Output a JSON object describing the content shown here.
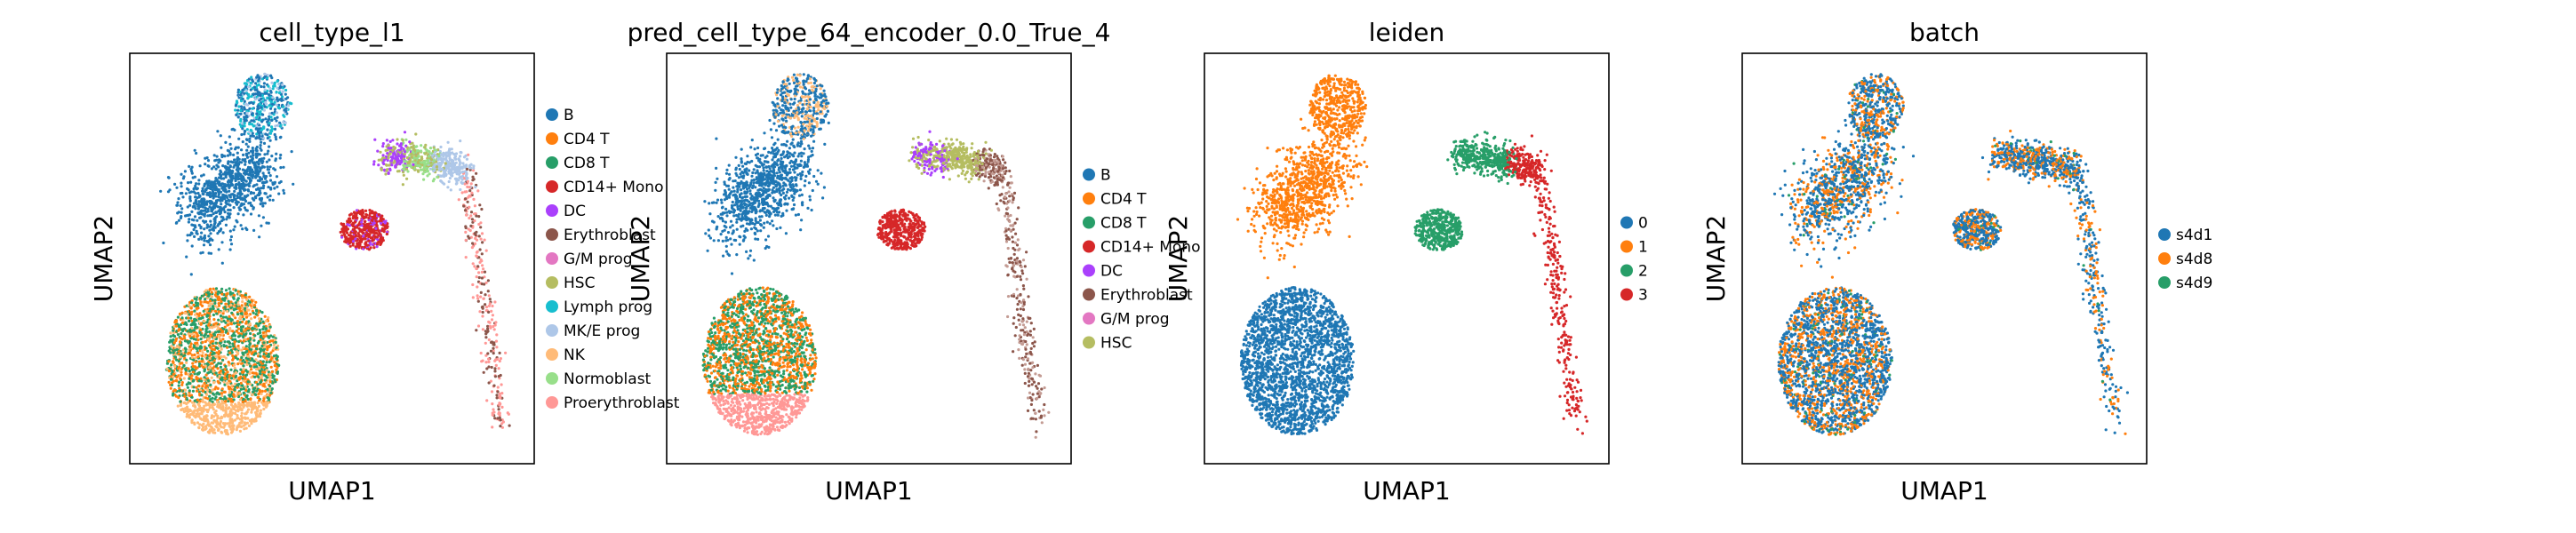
{
  "figure": {
    "panels": [
      {
        "title": "cell_type_l1",
        "xlabel": "UMAP1",
        "ylabel": "UMAP2",
        "legend": [
          {
            "label": "B",
            "color": "#1f77b4"
          },
          {
            "label": "CD4 T",
            "color": "#ff7f0e"
          },
          {
            "label": "CD8 T",
            "color": "#279e68"
          },
          {
            "label": "CD14+ Mono",
            "color": "#d62728"
          },
          {
            "label": "DC",
            "color": "#aa40fc"
          },
          {
            "label": "Erythroblast",
            "color": "#8c564b"
          },
          {
            "label": "G/M prog",
            "color": "#e377c2"
          },
          {
            "label": "HSC",
            "color": "#b5bd61"
          },
          {
            "label": "Lymph prog",
            "color": "#17becf"
          },
          {
            "label": "MK/E prog",
            "color": "#aec7e8"
          },
          {
            "label": "NK",
            "color": "#ffbb78"
          },
          {
            "label": "Normoblast",
            "color": "#98df8a"
          },
          {
            "label": "Proerythroblast",
            "color": "#ff9896"
          }
        ]
      },
      {
        "title": "pred_cell_type_64_encoder_0.0_True_4",
        "xlabel": "UMAP1",
        "ylabel": "UMAP2",
        "legend": [
          {
            "label": "B",
            "color": "#1f77b4"
          },
          {
            "label": "CD4 T",
            "color": "#ff7f0e"
          },
          {
            "label": "CD8 T",
            "color": "#279e68"
          },
          {
            "label": "CD14+ Mono",
            "color": "#d62728"
          },
          {
            "label": "DC",
            "color": "#aa40fc"
          },
          {
            "label": "Erythroblast",
            "color": "#8c564b"
          },
          {
            "label": "G/M prog",
            "color": "#e377c2"
          },
          {
            "label": "HSC",
            "color": "#b5bd61"
          }
        ]
      },
      {
        "title": "leiden",
        "xlabel": "UMAP1",
        "ylabel": "UMAP2",
        "legend": [
          {
            "label": "0",
            "color": "#1f77b4"
          },
          {
            "label": "1",
            "color": "#ff7f0e"
          },
          {
            "label": "2",
            "color": "#279e68"
          },
          {
            "label": "3",
            "color": "#d62728"
          }
        ]
      },
      {
        "title": "batch",
        "xlabel": "UMAP1",
        "ylabel": "UMAP2",
        "legend": [
          {
            "label": "s4d1",
            "color": "#1f77b4"
          },
          {
            "label": "s4d8",
            "color": "#ff7f0e"
          },
          {
            "label": "s4d9",
            "color": "#279e68"
          }
        ]
      }
    ]
  },
  "chart_data": [
    {
      "type": "scatter",
      "title": "cell_type_l1",
      "xlabel": "UMAP1",
      "ylabel": "UMAP2",
      "grid": false,
      "ticks": false,
      "legend_placement": "right outside",
      "series": [
        {
          "name": "B",
          "color": "#1f77b4"
        },
        {
          "name": "CD4 T",
          "color": "#ff7f0e"
        },
        {
          "name": "CD8 T",
          "color": "#279e68"
        },
        {
          "name": "CD14+ Mono",
          "color": "#d62728"
        },
        {
          "name": "DC",
          "color": "#aa40fc"
        },
        {
          "name": "Erythroblast",
          "color": "#8c564b"
        },
        {
          "name": "G/M prog",
          "color": "#e377c2"
        },
        {
          "name": "HSC",
          "color": "#b5bd61"
        },
        {
          "name": "Lymph prog",
          "color": "#17becf"
        },
        {
          "name": "MK/E prog",
          "color": "#aec7e8"
        },
        {
          "name": "NK",
          "color": "#ffbb78"
        },
        {
          "name": "Normoblast",
          "color": "#98df8a"
        },
        {
          "name": "Proerythroblast",
          "color": "#ff9896"
        }
      ]
    },
    {
      "type": "scatter",
      "title": "pred_cell_type_64_encoder_0.0_True_4",
      "xlabel": "UMAP1",
      "ylabel": "UMAP2",
      "grid": false,
      "ticks": false,
      "legend_placement": "right outside",
      "series": [
        {
          "name": "B",
          "color": "#1f77b4"
        },
        {
          "name": "CD4 T",
          "color": "#ff7f0e"
        },
        {
          "name": "CD8 T",
          "color": "#279e68"
        },
        {
          "name": "CD14+ Mono",
          "color": "#d62728"
        },
        {
          "name": "DC",
          "color": "#aa40fc"
        },
        {
          "name": "Erythroblast",
          "color": "#8c564b"
        },
        {
          "name": "G/M prog",
          "color": "#e377c2"
        },
        {
          "name": "HSC",
          "color": "#b5bd61"
        }
      ]
    },
    {
      "type": "scatter",
      "title": "leiden",
      "xlabel": "UMAP1",
      "ylabel": "UMAP2",
      "grid": false,
      "ticks": false,
      "legend_placement": "right outside",
      "series": [
        {
          "name": "0",
          "color": "#1f77b4"
        },
        {
          "name": "1",
          "color": "#ff7f0e"
        },
        {
          "name": "2",
          "color": "#279e68"
        },
        {
          "name": "3",
          "color": "#d62728"
        }
      ]
    },
    {
      "type": "scatter",
      "title": "batch",
      "xlabel": "UMAP1",
      "ylabel": "UMAP2",
      "grid": false,
      "ticks": false,
      "legend_placement": "right outside",
      "series": [
        {
          "name": "s4d1",
          "color": "#1f77b4"
        },
        {
          "name": "s4d8",
          "color": "#ff7f0e"
        },
        {
          "name": "s4d9",
          "color": "#279e68"
        }
      ]
    }
  ]
}
